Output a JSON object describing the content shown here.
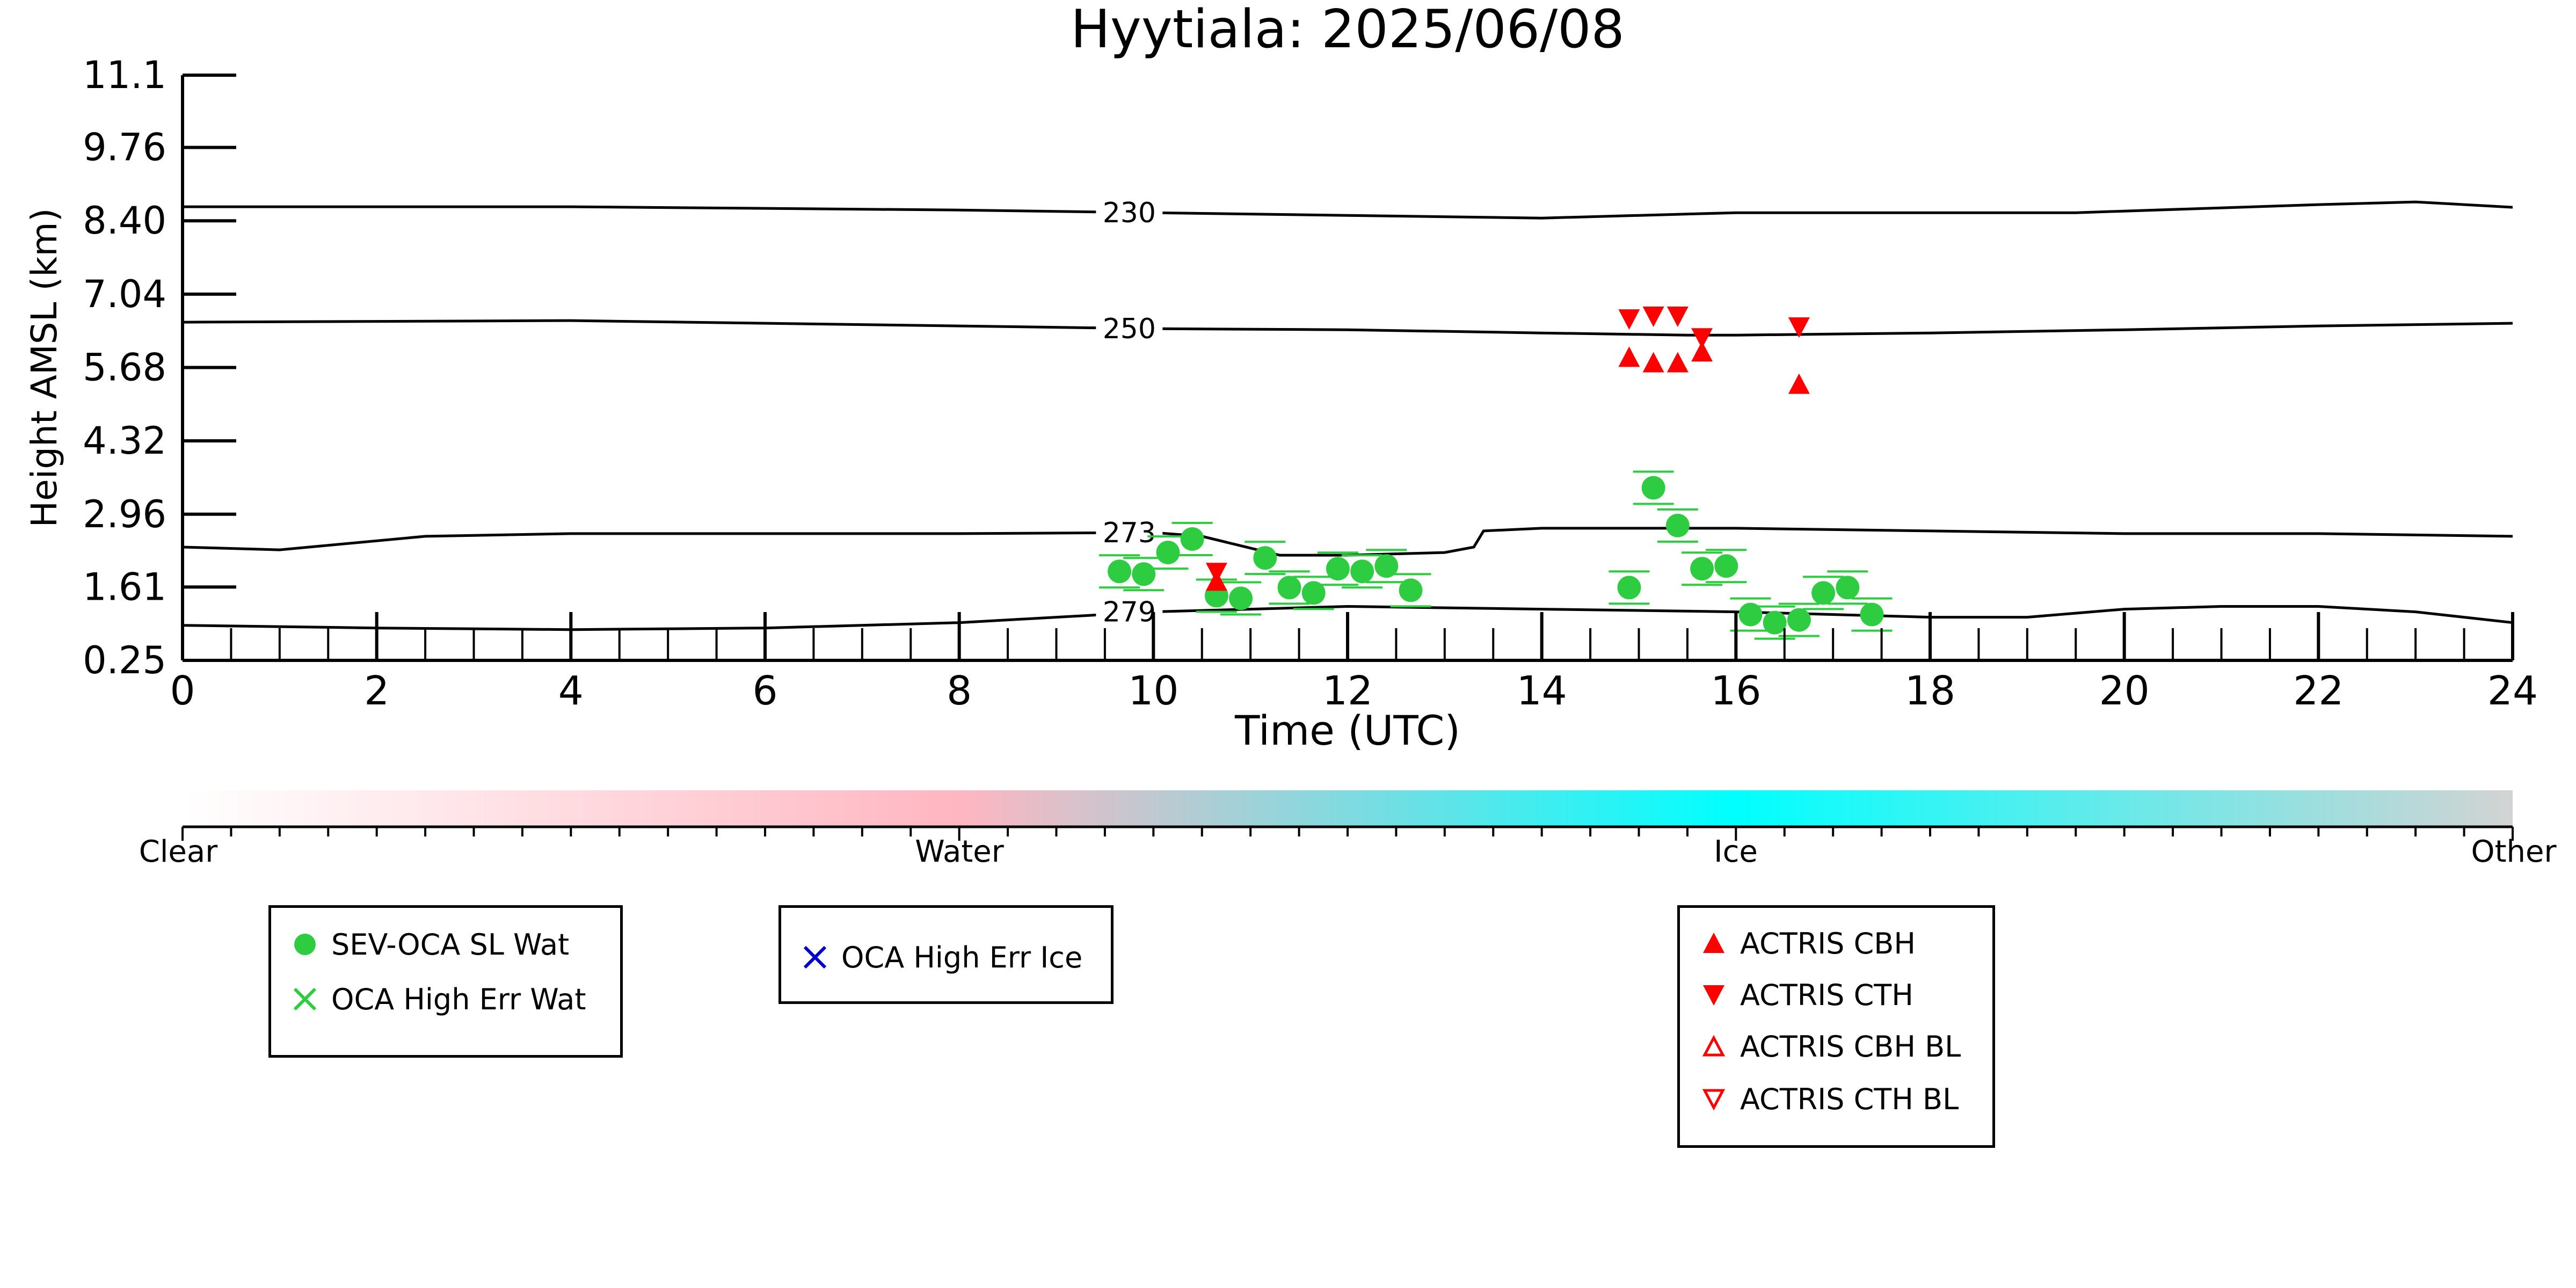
{
  "chart_data": {
    "type": "scatter",
    "title": "Hyytiala: 2025/06/08",
    "xlabel": "Time (UTC)",
    "ylabel": "Height AMSL (km)",
    "xlim": [
      0,
      24
    ],
    "ylim": [
      0.25,
      11.1
    ],
    "x_ticks": [
      "0",
      "2",
      "4",
      "6",
      "8",
      "10",
      "12",
      "14",
      "16",
      "18",
      "20",
      "22",
      "24"
    ],
    "y_ticks": [
      "0.25",
      "1.61",
      "2.96",
      "4.32",
      "5.68",
      "7.04",
      "8.40",
      "9.76",
      "11.1"
    ],
    "y_tick_values": [
      0.25,
      1.61,
      2.96,
      4.32,
      5.68,
      7.04,
      8.4,
      9.76,
      11.1
    ],
    "background": "ceilometer/radar cloud phase classification",
    "colorbar": {
      "labels": [
        "Clear",
        "Water",
        "Ice",
        "Other"
      ],
      "colors": {
        "clear": "#ffffff",
        "water": "#ffb6c1",
        "ice": "#00ffff",
        "other": "#d3d3d3"
      }
    },
    "contours": [
      {
        "label": "230",
        "x": [
          0,
          4,
          8,
          10,
          12,
          14,
          16,
          18,
          19.5,
          22,
          23,
          24
        ],
        "y": [
          8.66,
          8.66,
          8.6,
          8.55,
          8.5,
          8.45,
          8.55,
          8.55,
          8.55,
          8.7,
          8.75,
          8.65
        ]
      },
      {
        "label": "250",
        "x": [
          0,
          4,
          8,
          10,
          12,
          14,
          15.5,
          16,
          18,
          20,
          22,
          24
        ],
        "y": [
          6.52,
          6.55,
          6.45,
          6.4,
          6.38,
          6.32,
          6.28,
          6.28,
          6.32,
          6.38,
          6.45,
          6.5
        ]
      },
      {
        "label": "273",
        "x": [
          0,
          1,
          2.5,
          4,
          6,
          8,
          10,
          10.5,
          11.3,
          12,
          13,
          13.3,
          13.4,
          14,
          16,
          18,
          20,
          22,
          24
        ],
        "y": [
          2.35,
          2.3,
          2.55,
          2.6,
          2.6,
          2.6,
          2.62,
          2.55,
          2.2,
          2.2,
          2.25,
          2.35,
          2.65,
          2.7,
          2.7,
          2.65,
          2.6,
          2.6,
          2.55
        ]
      },
      {
        "label": "279",
        "x": [
          0,
          2,
          4,
          6,
          8,
          9,
          10,
          11,
          12,
          14,
          16,
          18,
          19,
          20,
          21,
          22,
          23,
          24
        ],
        "y": [
          0.9,
          0.85,
          0.82,
          0.85,
          0.95,
          1.05,
          1.15,
          1.2,
          1.25,
          1.2,
          1.15,
          1.05,
          1.05,
          1.2,
          1.25,
          1.25,
          1.15,
          0.95
        ]
      }
    ],
    "series": [
      {
        "name": "SEV-OCA SL Wat",
        "marker": "circle",
        "color": "#2ecc40",
        "x": [
          9.65,
          9.9,
          10.15,
          10.4,
          10.65,
          10.9,
          11.15,
          11.4,
          11.65,
          11.9,
          12.15,
          12.4,
          12.65,
          14.9,
          15.15,
          15.4,
          15.65,
          15.9,
          16.15,
          16.4,
          16.65,
          16.9,
          17.15,
          17.4
        ],
        "y": [
          1.9,
          1.85,
          2.25,
          2.5,
          1.45,
          1.4,
          2.15,
          1.6,
          1.5,
          1.95,
          1.9,
          2.0,
          1.55,
          1.6,
          3.45,
          2.75,
          1.95,
          2.0,
          1.1,
          0.95,
          1.0,
          1.5,
          1.6,
          1.1
        ]
      },
      {
        "name": "OCA High Err Wat",
        "marker": "x",
        "color": "#2ecc40",
        "x": [],
        "y": []
      },
      {
        "name": "OCA High Err Ice",
        "marker": "x",
        "color": "#0000cc",
        "x": [],
        "y": []
      },
      {
        "name": "ACTRIS CBH",
        "marker": "triangle-up",
        "color": "#ff0000",
        "x": [
          10.65,
          14.9,
          15.15,
          15.4,
          15.65,
          16.65
        ],
        "y": [
          1.7,
          5.85,
          5.75,
          5.75,
          5.95,
          5.35
        ]
      },
      {
        "name": "ACTRIS CTH",
        "marker": "triangle-down",
        "color": "#ff0000",
        "x": [
          10.65,
          14.9,
          15.15,
          15.4,
          15.65,
          16.65
        ],
        "y": [
          1.9,
          6.6,
          6.65,
          6.65,
          6.25,
          6.45
        ]
      },
      {
        "name": "ACTRIS CBH BL",
        "marker": "triangle-up-open",
        "color": "#ff0000",
        "x": [],
        "y": []
      },
      {
        "name": "ACTRIS CTH BL",
        "marker": "triangle-down-open",
        "color": "#ff0000",
        "x": [],
        "y": []
      }
    ],
    "legend": {
      "box1": [
        "SEV-OCA SL Wat",
        "OCA High Err Wat"
      ],
      "box2": [
        "OCA High Err Ice"
      ],
      "box3": [
        "ACTRIS CBH",
        "ACTRIS CTH",
        "ACTRIS CBH BL",
        "ACTRIS CTH BL"
      ]
    }
  }
}
